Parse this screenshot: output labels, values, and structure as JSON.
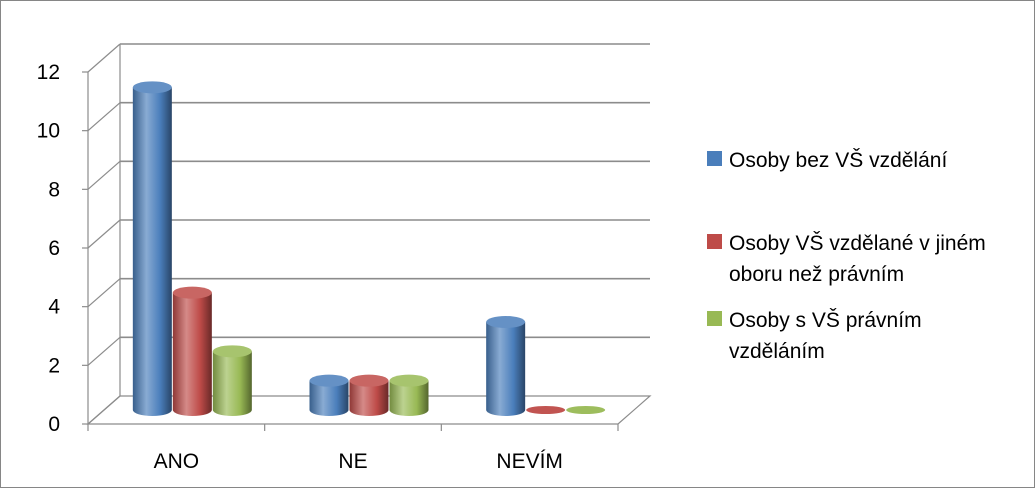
{
  "chart_data": {
    "type": "bar",
    "title": "",
    "xlabel": "",
    "ylabel": "",
    "categories": [
      "ANO",
      "NE",
      "NEVÍM"
    ],
    "series": [
      {
        "name": "Osoby bez VŠ vzdělání",
        "values": [
          11,
          1,
          3
        ],
        "color": "#4a7ebb"
      },
      {
        "name": "Osoby VŠ vzdělané v jiném oboru než právním",
        "values": [
          4,
          1,
          0
        ],
        "color": "#be4b48"
      },
      {
        "name": "Osoby s VŠ právním vzděláním",
        "values": [
          2,
          1,
          0
        ],
        "color": "#98b954"
      }
    ],
    "ylim": [
      0,
      12
    ],
    "yticks": [
      0,
      2,
      4,
      6,
      8,
      10,
      12
    ],
    "grid": true,
    "legend": "right",
    "style": "3d-cylinder"
  },
  "legend_lines": [
    [
      "Osoby bez VŠ vzdělání"
    ],
    [
      "Osoby VŠ vzdělané v jiném",
      "oboru než právním"
    ],
    [
      "Osoby s VŠ právním",
      "vzděláním"
    ]
  ]
}
